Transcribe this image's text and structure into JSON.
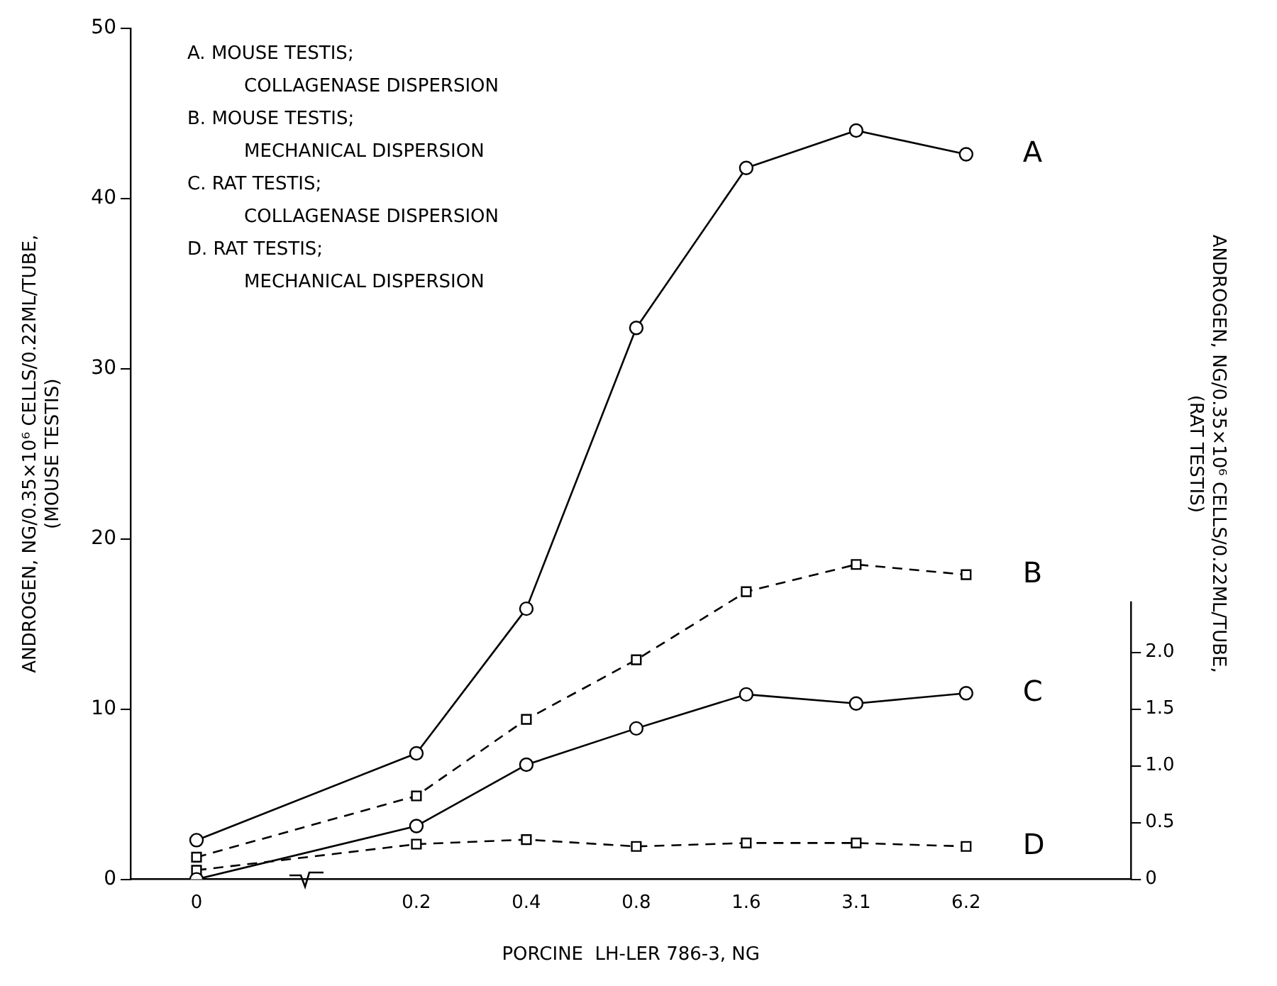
{
  "chart_data": {
    "type": "line",
    "xlabel": "PORCINE  LH-LER 786-3, NG",
    "ylabel": "ANDROGEN, NG/0.35×10⁶ CELLS/0.22ML/TUBE,\n(MOUSE TESTIS)",
    "y2label": "ANDROGEN, NG/0.35×10⁶ CELLS/0.22ML/TUBE,\n(RAT TESTIS)",
    "categories": [
      "0",
      null,
      "0.2",
      "0.4",
      "0.8",
      "1.6",
      "3.1",
      "6.2"
    ],
    "series": [
      {
        "name": "A",
        "color": "#000000",
        "marker": "circle",
        "line_style": "solid",
        "values": [
          2.3,
          null,
          7.4,
          15.9,
          32.4,
          41.8,
          44.0,
          42.6
        ]
      },
      {
        "name": "B",
        "color": "#000000",
        "marker": "square",
        "line_style": "dashed",
        "values": [
          1.3,
          null,
          4.9,
          9.4,
          12.9,
          16.9,
          18.5,
          17.9
        ]
      },
      {
        "name": "C",
        "color": "#000000",
        "marker": "circle",
        "line_style": "solid",
        "axis": "y2",
        "values": [
          0.0,
          null,
          0.47,
          1.01,
          1.33,
          1.63,
          1.55,
          1.64
        ]
      },
      {
        "name": "D",
        "color": "#000000",
        "marker": "square",
        "line_style": "dashed",
        "axis": "y2",
        "values": [
          0.08,
          null,
          0.31,
          0.35,
          0.29,
          0.32,
          0.32,
          0.29
        ]
      }
    ],
    "ylim": [
      0,
      50
    ],
    "yticks": [
      0,
      10,
      20,
      30,
      40,
      50
    ],
    "y2lim": [
      0,
      7.5
    ],
    "y2ticks": [
      0,
      {
        "value": 0.5,
        "label": "0.5"
      },
      {
        "value": 1,
        "label": "1.0"
      },
      {
        "value": 1.5,
        "label": "1.5"
      },
      {
        "value": 2,
        "label": "2.0"
      }
    ],
    "grid": false,
    "annotations": [
      "A. MOUSE TESTIS;\nCOLLAGENASE DISPERSION",
      "B. MOUSE TESTIS;\nMECHANICAL DISPERSION",
      "C. RAT TESTIS;\nCOLLAGENASE DISPERSION",
      "D. RAT TESTIS;\nMECHANICAL DISPERSION"
    ]
  }
}
